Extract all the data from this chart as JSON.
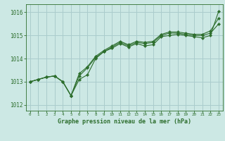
{
  "title": "Graphe pression niveau de la mer (hPa)",
  "background_color": "#cce8e4",
  "grid_color": "#aacccc",
  "line_color": "#2d6e2d",
  "marker_color": "#2d6e2d",
  "xlim": [
    -0.5,
    23.5
  ],
  "ylim": [
    1011.75,
    1016.35
  ],
  "yticks": [
    1012,
    1013,
    1014,
    1015,
    1016
  ],
  "xticks": [
    0,
    1,
    2,
    3,
    4,
    5,
    6,
    7,
    8,
    9,
    10,
    11,
    12,
    13,
    14,
    15,
    16,
    17,
    18,
    19,
    20,
    21,
    22,
    23
  ],
  "series": [
    [
      1013.0,
      1013.1,
      1013.2,
      1013.25,
      1013.0,
      1012.4,
      1013.1,
      1013.3,
      1014.0,
      1014.3,
      1014.45,
      1014.65,
      1014.5,
      1014.65,
      1014.55,
      1014.6,
      1014.95,
      1015.0,
      1015.05,
      1015.0,
      1014.95,
      1014.9,
      1015.0,
      1016.05
    ],
    [
      1013.0,
      1013.1,
      1013.2,
      1013.25,
      1013.0,
      1012.4,
      1013.25,
      1013.6,
      1014.05,
      1014.3,
      1014.5,
      1014.7,
      1014.55,
      1014.7,
      1014.65,
      1014.7,
      1015.0,
      1015.1,
      1015.1,
      1015.05,
      1015.0,
      1015.0,
      1015.1,
      1015.5
    ],
    [
      1013.0,
      1013.1,
      1013.2,
      1013.25,
      1013.0,
      1012.4,
      1013.35,
      1013.65,
      1014.1,
      1014.35,
      1014.55,
      1014.75,
      1014.6,
      1014.75,
      1014.7,
      1014.75,
      1015.05,
      1015.15,
      1015.15,
      1015.1,
      1015.05,
      1015.05,
      1015.2,
      1015.75
    ]
  ]
}
